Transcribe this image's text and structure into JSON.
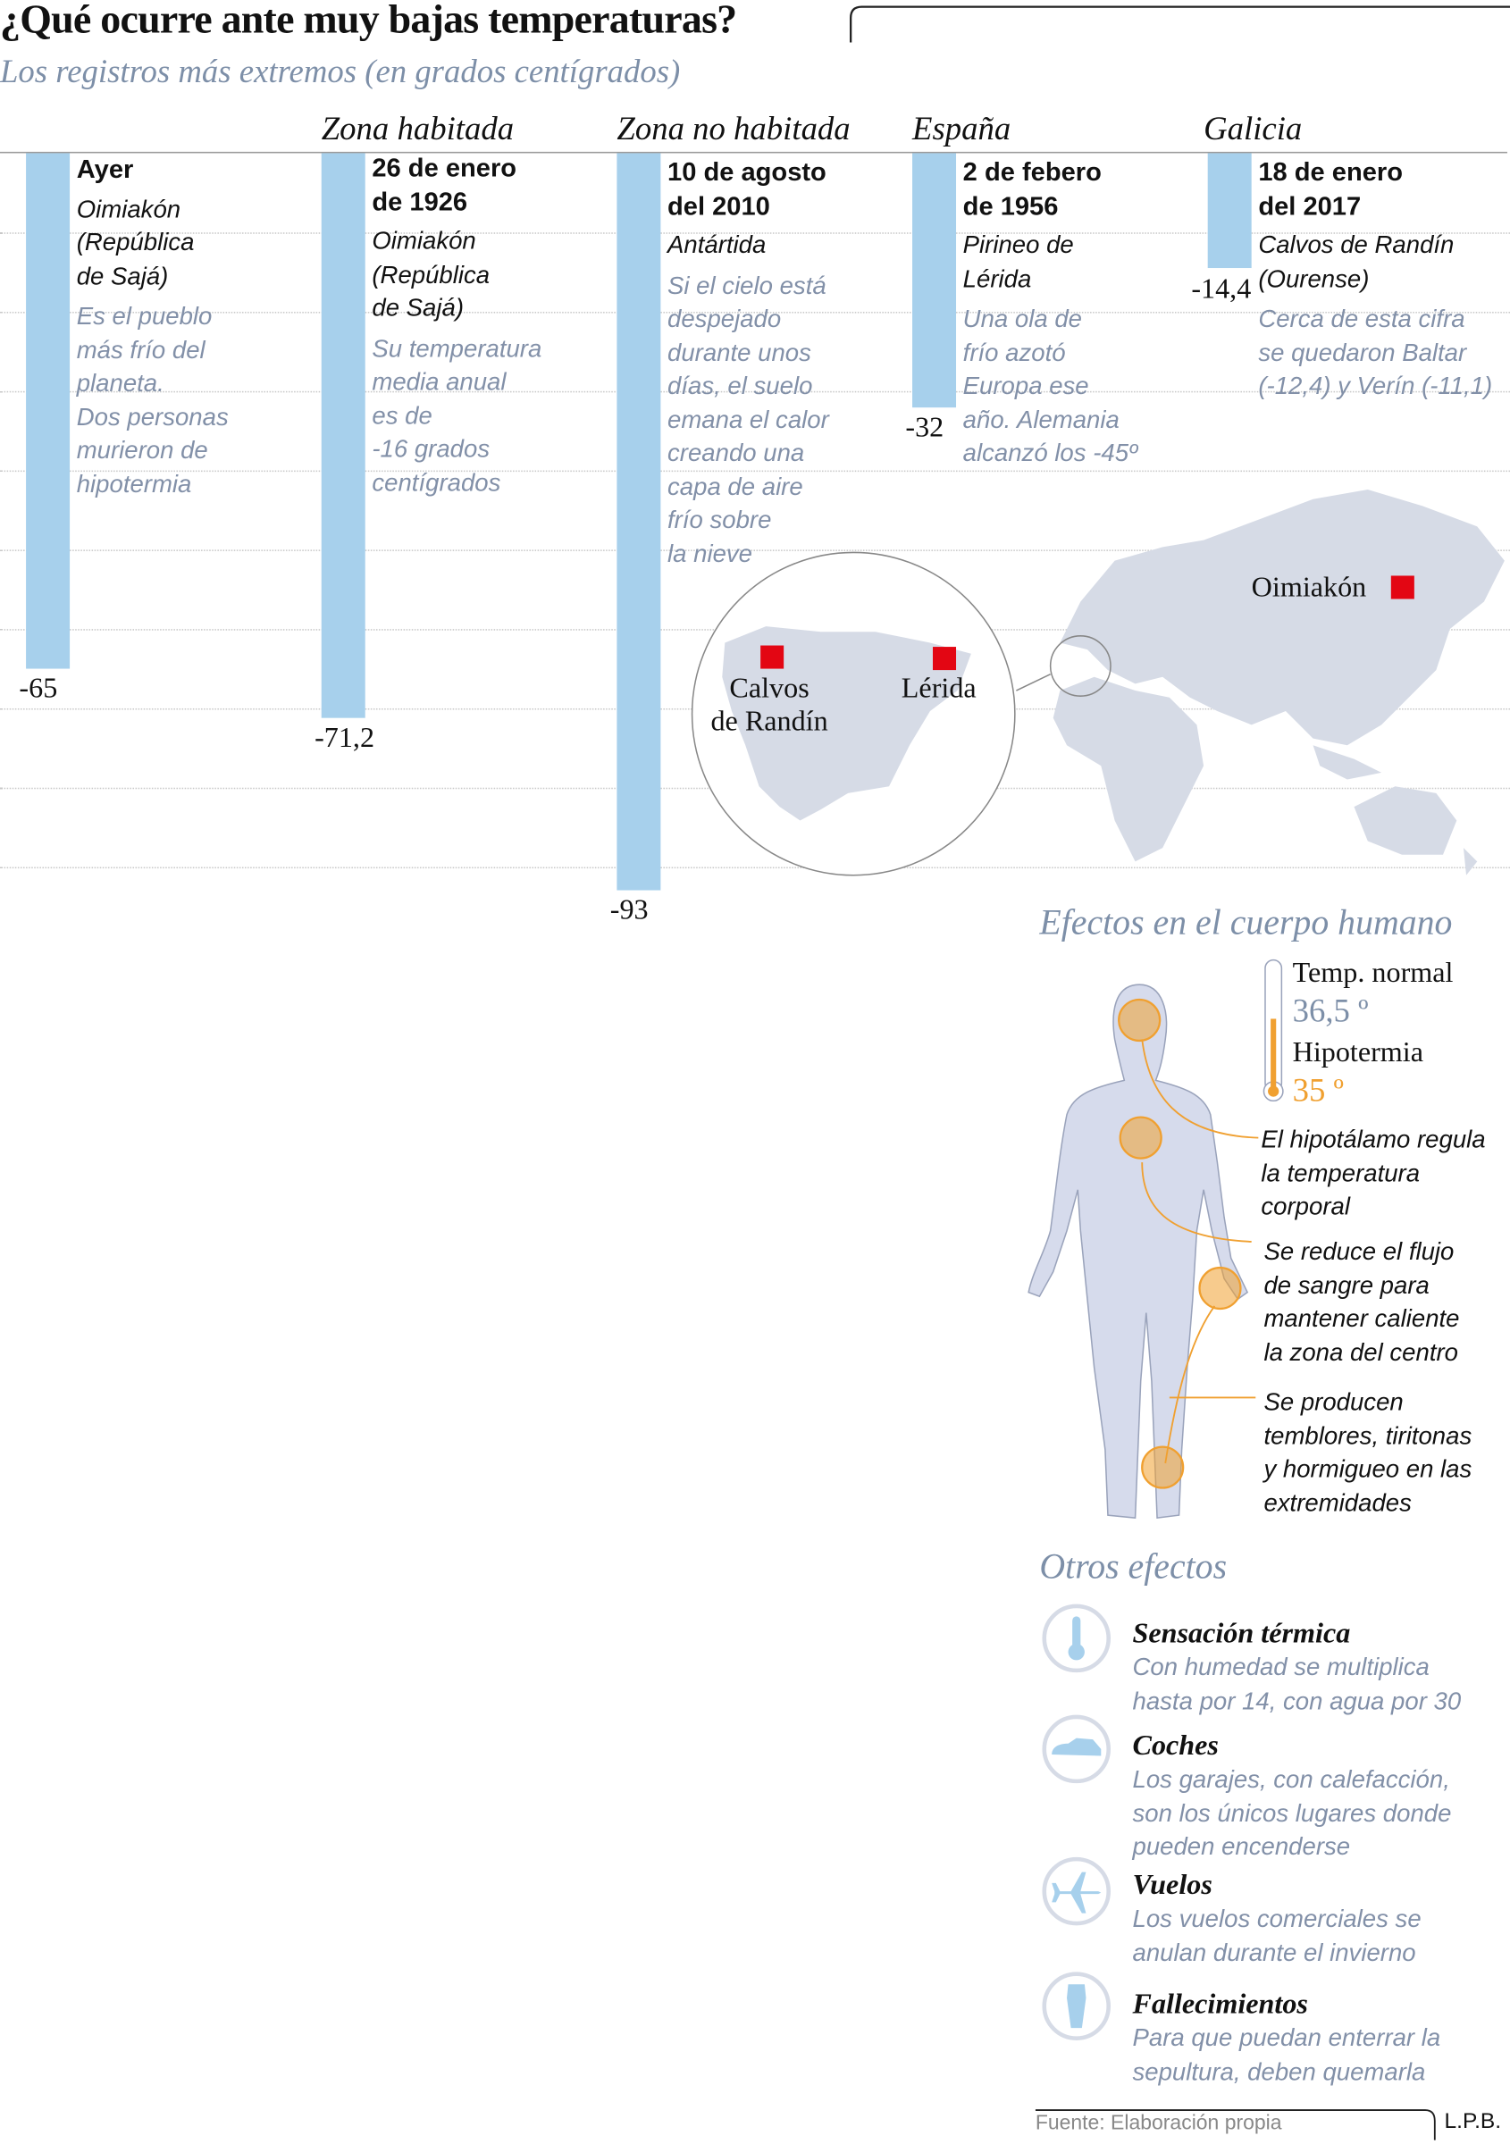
{
  "header": {
    "title": "¿Qué ocurre ante muy bajas temperaturas?",
    "subtitle": "Los registros más extremos (en grados centígrados)"
  },
  "columns": {
    "zona_habitada": "Zona habitada",
    "zona_no_habitada": "Zona no habitada",
    "espana": "España",
    "galicia": "Galicia"
  },
  "chart_data": {
    "type": "bar",
    "title": "Los registros más extremos (en grados centígrados)",
    "categories": [
      "Ayer",
      "26 de enero de 1926",
      "10 de agosto del 2010",
      "2 de febero de 1956",
      "18 de enero del 2017"
    ],
    "values": [
      -65,
      -71.2,
      -93,
      -32,
      -14.4
    ],
    "value_labels": [
      "-65",
      "-71,2",
      "-93",
      "-32",
      "-14,4"
    ],
    "ylim": [
      -100,
      0
    ],
    "gridline_step": 10,
    "bar_color": "#a7d0ec"
  },
  "records": [
    {
      "date_l1": "Ayer",
      "date_l2": "",
      "place_l1": "Oimiakón",
      "place_l2": "(República",
      "place_l3": "de Sajá)",
      "note": [
        "Es el pueblo",
        "más frío del",
        "planeta.",
        "Dos personas",
        "murieron de",
        "hipotermia"
      ]
    },
    {
      "date_l1": "26 de enero",
      "date_l2": "de 1926",
      "place_l1": "Oimiakón",
      "place_l2": "(República",
      "place_l3": "de Sajá)",
      "note": [
        "Su temperatura",
        "media anual",
        "es de",
        "-16 grados",
        "centígrados"
      ]
    },
    {
      "date_l1": "10 de agosto",
      "date_l2": "del 2010",
      "place_l1": "Antártida",
      "place_l2": "",
      "place_l3": "",
      "note": [
        "Si el cielo está",
        "despejado",
        "durante unos",
        "días, el suelo",
        "emana el calor",
        "creando una",
        "capa de aire",
        "frío sobre",
        "la nieve"
      ]
    },
    {
      "date_l1": "2 de febero",
      "date_l2": "de 1956",
      "place_l1": "Pirineo de",
      "place_l2": "Lérida",
      "place_l3": "",
      "note": [
        "Una ola de",
        "frío azotó",
        "Europa ese",
        "año. Alemania",
        "alcanzó los -45º"
      ]
    },
    {
      "date_l1": "18 de enero",
      "date_l2": "del 2017",
      "place_l1": "Calvos de Randín",
      "place_l2": "(Ourense)",
      "place_l3": "",
      "note": [
        "Cerca de esta cifra",
        "se quedaron Baltar",
        "(-12,4) y Verín (-11,1)"
      ]
    }
  ],
  "map": {
    "oimiakon": "Oimiakón",
    "calvos": [
      "Calvos",
      "de Randín"
    ],
    "lerida": "Lérida",
    "marker_color": "#e30613"
  },
  "body": {
    "title": "Efectos en el cuerpo humano",
    "temp_normal_label": "Temp. normal",
    "temp_normal_value": "36,5 º",
    "hipotermia_label": "Hipotermia",
    "hipotermia_value": "35 º",
    "accent": "#f0a030",
    "annotations": [
      [
        "El hipotálamo regula",
        "la temperatura",
        "corporal"
      ],
      [
        "Se reduce el flujo",
        "de sangre para",
        "mantener caliente",
        "la zona del centro"
      ],
      [
        "Se producen",
        "temblores, tiritonas",
        "y hormigueo en las",
        "extremidades"
      ]
    ]
  },
  "others": {
    "title": "Otros efectos",
    "items": [
      {
        "icon": "thermometer-icon",
        "title": "Sensación térmica",
        "desc": [
          "Con humedad se multiplica",
          "hasta por 14, con agua por 30"
        ]
      },
      {
        "icon": "car-icon",
        "title": "Coches",
        "desc": [
          "Los garajes, con calefacción,",
          "son los únicos lugares donde",
          "pueden encenderse"
        ]
      },
      {
        "icon": "airplane-icon",
        "title": "Vuelos",
        "desc": [
          "Los vuelos comerciales se",
          "anulan durante el invierno"
        ]
      },
      {
        "icon": "coffin-icon",
        "title": "Fallecimientos",
        "desc": [
          "Para que puedan enterrar la",
          "sepultura, deben quemarla"
        ]
      }
    ]
  },
  "footer": {
    "source": "Fuente: Elaboración propia",
    "credit": "L.P.B."
  }
}
